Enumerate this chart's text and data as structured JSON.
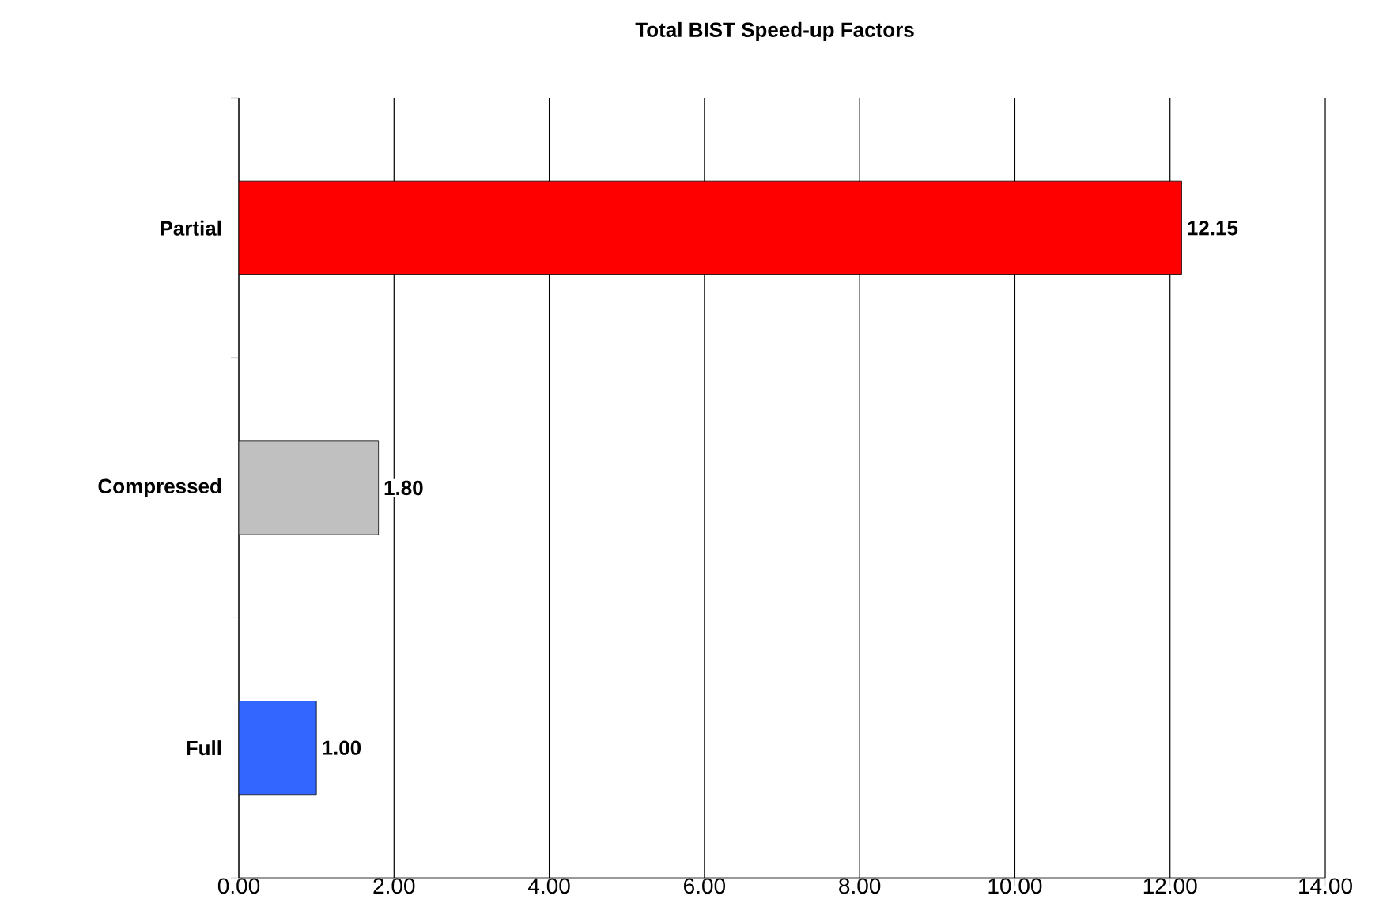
{
  "chart_data": {
    "type": "bar",
    "orientation": "horizontal",
    "title": "Total BIST Speed-up Factors",
    "categories": [
      "Partial",
      "Compressed",
      "Full"
    ],
    "values": [
      12.15,
      1.8,
      1.0
    ],
    "colors": [
      "#ff0000",
      "#c0c0c0",
      "#3366ff"
    ],
    "value_labels": [
      "12.15",
      "1.80",
      "1.00"
    ],
    "xlim": [
      0,
      14
    ],
    "xticks": [
      {
        "value": 0,
        "label": "0.00"
      },
      {
        "value": 2,
        "label": "2.00"
      },
      {
        "value": 4,
        "label": "4.00"
      },
      {
        "value": 6,
        "label": "6.00"
      },
      {
        "value": 8,
        "label": "8.00"
      },
      {
        "value": 10,
        "label": "10.00"
      },
      {
        "value": 12,
        "label": "12.00"
      },
      {
        "value": 14,
        "label": "14.00"
      }
    ],
    "grid": "x"
  }
}
